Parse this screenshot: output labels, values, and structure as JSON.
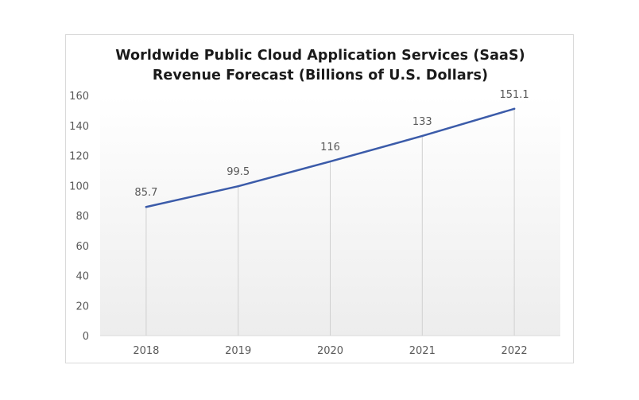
{
  "chart_data": {
    "type": "line",
    "title_line1": "Worldwide Public Cloud Application Services (SaaS)",
    "title_line2": "Revenue Forecast (Billions of U.S. Dollars)",
    "categories": [
      "2018",
      "2019",
      "2020",
      "2021",
      "2022"
    ],
    "series": [
      {
        "values": [
          85.7,
          99.5,
          116,
          133,
          151.1
        ],
        "labels": [
          "85.7",
          "99.5",
          "116",
          "133",
          "151.1"
        ],
        "color": "#3b5ba9"
      }
    ],
    "yticks": [
      "0",
      "20",
      "40",
      "60",
      "80",
      "100",
      "120",
      "140",
      "160"
    ],
    "ylim": [
      0,
      160
    ],
    "grid": "vertical drop lines",
    "background_gradient": [
      "#ffffff",
      "#ededed"
    ]
  }
}
